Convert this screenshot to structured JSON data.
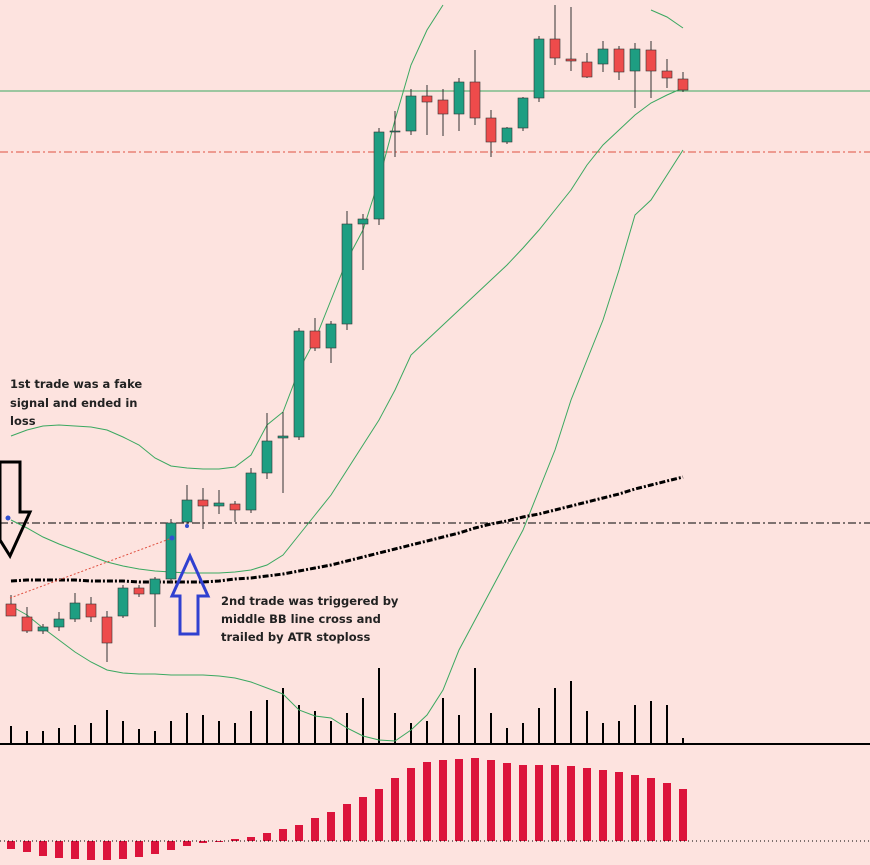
{
  "chart_data": {
    "type": "candlestick",
    "ylim": [
      0,
      745
    ],
    "up_color": "#1e9e82",
    "down_color": "#ee4b4b",
    "open": [
      141,
      128,
      114,
      118,
      126,
      141,
      128,
      129,
      157,
      151,
      166,
      223,
      245,
      239,
      241,
      235,
      272,
      307,
      308,
      414,
      397,
      421,
      521,
      526,
      613,
      614,
      649,
      645,
      631,
      663,
      627,
      603,
      617,
      647,
      706,
      686,
      683,
      681,
      696,
      674,
      695,
      674,
      666
    ],
    "high": [
      150,
      138,
      121,
      133,
      152,
      148,
      134,
      160,
      160,
      168,
      226,
      260,
      257,
      255,
      244,
      277,
      332,
      333,
      417,
      427,
      424,
      534,
      531,
      617,
      634,
      656,
      660,
      656,
      667,
      695,
      635,
      618,
      648,
      709,
      740,
      738,
      692,
      704,
      699,
      702,
      704,
      686,
      673
    ],
    "low": [
      129,
      112,
      111,
      114,
      123,
      123,
      83,
      127,
      148,
      118,
      162,
      218,
      216,
      231,
      223,
      232,
      266,
      252,
      305,
      394,
      382,
      415,
      475,
      520,
      588,
      610,
      610,
      609,
      614,
      620,
      588,
      601,
      614,
      643,
      680,
      674,
      667,
      673,
      665,
      637,
      647,
      657,
      653
    ],
    "close": [
      129,
      114,
      118,
      126,
      142,
      128,
      102,
      157,
      151,
      166,
      222,
      245,
      239,
      242,
      235,
      272,
      304,
      309,
      414,
      397,
      421,
      521,
      526,
      613,
      614,
      649,
      643,
      631,
      663,
      627,
      603,
      617,
      647,
      706,
      687,
      684,
      668,
      696,
      673,
      696,
      674,
      667,
      655
    ],
    "upper_band": [
      309,
      315,
      319,
      320,
      319,
      318,
      315,
      308,
      300,
      287,
      279,
      277,
      276,
      276,
      278,
      290,
      320,
      333,
      375,
      405,
      445,
      485,
      515,
      565,
      625,
      680,
      715,
      740,
      null,
      null,
      null,
      null,
      null,
      null,
      null,
      null,
      null,
      null,
      null,
      null,
      735,
      728,
      717
    ],
    "middle_band": [
      225,
      217,
      208,
      201,
      195,
      189,
      183,
      179,
      176,
      174,
      173,
      172,
      172,
      172,
      173,
      175,
      180,
      190,
      210,
      230,
      250,
      275,
      300,
      325,
      355,
      390,
      405,
      420,
      435,
      450,
      465,
      480,
      497,
      515,
      535,
      555,
      580,
      600,
      615,
      630,
      642,
      650,
      657
    ],
    "lower_band": [
      139,
      130,
      117,
      105,
      93,
      83,
      75,
      72,
      71,
      71,
      70,
      70,
      70,
      69,
      67,
      63,
      57,
      51,
      35,
      29,
      27,
      17,
      9,
      5,
      4,
      15,
      30,
      55,
      95,
      125,
      155,
      185,
      215,
      255,
      295,
      345,
      385,
      425,
      475,
      530,
      545,
      570,
      595
    ],
    "band_color": "#3aa860",
    "moving_average": [
      164,
      165,
      165,
      165,
      165,
      164,
      164,
      164,
      163,
      163,
      163,
      163,
      163,
      164,
      166,
      167,
      169,
      171,
      174,
      177,
      180,
      184,
      188,
      192,
      196,
      200,
      204,
      208,
      212,
      217,
      221,
      224,
      228,
      231,
      235,
      239,
      243,
      247,
      251,
      256,
      260,
      264,
      268
    ],
    "moving_average_color": "#000000",
    "hlines": [
      {
        "value": 654,
        "color": "#3aa860",
        "style": "solid"
      },
      {
        "value": 593,
        "color": "#e05040",
        "style": "dash-dot"
      },
      {
        "value": 222,
        "color": "#000000",
        "style": "dash-dot"
      }
    ],
    "volume": {
      "values": [
        17,
        12,
        12,
        15,
        18,
        20,
        33,
        22,
        14,
        12,
        22,
        30,
        28,
        22,
        20,
        32,
        43,
        55,
        38,
        32,
        22,
        30,
        45,
        75,
        30,
        20,
        22,
        45,
        28,
        75,
        30,
        15,
        20,
        35,
        55,
        62,
        32,
        20,
        22,
        38,
        42,
        38,
        5
      ],
      "color": "#000000",
      "ylim": [
        0,
        80
      ]
    },
    "oscillator": {
      "values": [
        -8,
        -11,
        -15,
        -17,
        -18,
        -19,
        -19,
        -18,
        -16,
        -13,
        -9,
        -5,
        -2,
        -1,
        2,
        4,
        8,
        12,
        16,
        23,
        29,
        37,
        44,
        52,
        63,
        73,
        79,
        81,
        82,
        83,
        81,
        78,
        76,
        76,
        76,
        75,
        73,
        71,
        69,
        66,
        63,
        58,
        52
      ],
      "color": "#dc143c",
      "ylim": [
        -24,
        96
      ]
    },
    "annotations": [
      {
        "lines": [
          "1st trade was a fake",
          "signal and ended in",
          "loss"
        ]
      },
      {
        "lines": [
          "2nd trade was triggered by",
          "middle BB line cross and",
          "trailed by ATR stoploss"
        ]
      }
    ]
  }
}
